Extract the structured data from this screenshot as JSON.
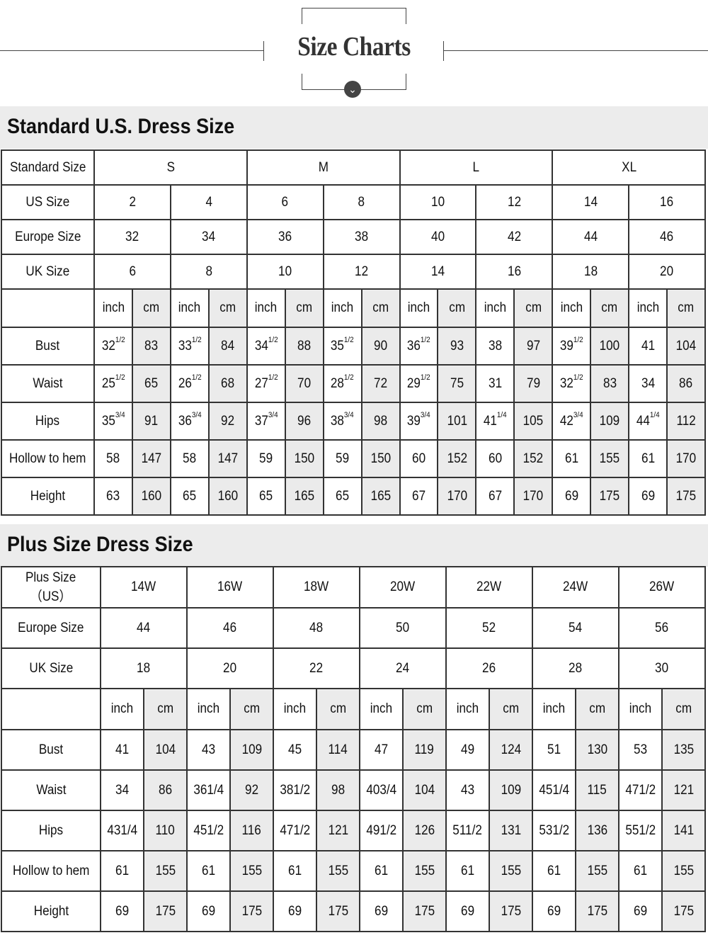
{
  "header": {
    "title": "Size Charts",
    "icon": "chevron-down-circle-icon"
  },
  "standard": {
    "title": "Standard U.S. Dress Size",
    "header_rows": [
      {
        "label": "Standard Size",
        "span": 4,
        "values": [
          "S",
          "M",
          "L",
          "XL"
        ]
      },
      {
        "label": "US Size",
        "span": 2,
        "values": [
          "2",
          "4",
          "6",
          "8",
          "10",
          "12",
          "14",
          "16"
        ]
      },
      {
        "label": "Europe Size",
        "span": 2,
        "values": [
          "32",
          "34",
          "36",
          "38",
          "40",
          "42",
          "44",
          "46"
        ]
      },
      {
        "label": "UK Size",
        "span": 2,
        "values": [
          "6",
          "8",
          "10",
          "12",
          "14",
          "16",
          "18",
          "20"
        ]
      }
    ],
    "units": [
      "inch",
      "cm"
    ],
    "unit_count": 8,
    "measure_rows": [
      {
        "label": "Bust",
        "values": [
          [
            "32",
            "1/2"
          ],
          "83",
          [
            "33",
            "1/2"
          ],
          "84",
          [
            "34",
            "1/2"
          ],
          "88",
          [
            "35",
            "1/2"
          ],
          "90",
          [
            "36",
            "1/2"
          ],
          "93",
          "38",
          "97",
          [
            "39",
            "1/2"
          ],
          "100",
          "41",
          "104"
        ]
      },
      {
        "label": "Waist",
        "values": [
          [
            "25",
            "1/2"
          ],
          "65",
          [
            "26",
            "1/2"
          ],
          "68",
          [
            "27",
            "1/2"
          ],
          "70",
          [
            "28",
            "1/2"
          ],
          "72",
          [
            "29",
            "1/2"
          ],
          "75",
          "31",
          "79",
          [
            "32",
            "1/2"
          ],
          "83",
          "34",
          "86"
        ]
      },
      {
        "label": "Hips",
        "values": [
          [
            "35",
            "3/4"
          ],
          "91",
          [
            "36",
            "3/4"
          ],
          "92",
          [
            "37",
            "3/4"
          ],
          "96",
          [
            "38",
            "3/4"
          ],
          "98",
          [
            "39",
            "3/4"
          ],
          "101",
          [
            "41",
            "1/4"
          ],
          "105",
          [
            "42",
            "3/4"
          ],
          "109",
          [
            "44",
            "1/4"
          ],
          "112"
        ]
      },
      {
        "label": "Hollow to hem",
        "values": [
          "58",
          "147",
          "58",
          "147",
          "59",
          "150",
          "59",
          "150",
          "60",
          "152",
          "60",
          "152",
          "61",
          "155",
          "61",
          "170"
        ]
      },
      {
        "label": "Height",
        "values": [
          "63",
          "160",
          "65",
          "160",
          "65",
          "165",
          "65",
          "165",
          "67",
          "170",
          "67",
          "170",
          "69",
          "175",
          "69",
          "175"
        ]
      }
    ]
  },
  "plus": {
    "title": "Plus Size Dress Size",
    "header_rows": [
      {
        "label": "Plus Size\n（US）",
        "span": 2,
        "values": [
          "14W",
          "16W",
          "18W",
          "20W",
          "22W",
          "24W",
          "26W"
        ]
      },
      {
        "label": "Europe Size",
        "span": 2,
        "values": [
          "44",
          "46",
          "48",
          "50",
          "52",
          "54",
          "56"
        ]
      },
      {
        "label": "UK Size",
        "span": 2,
        "values": [
          "18",
          "20",
          "22",
          "24",
          "26",
          "28",
          "30"
        ]
      }
    ],
    "units": [
      "inch",
      "cm"
    ],
    "unit_count": 7,
    "measure_rows": [
      {
        "label": "Bust",
        "values": [
          "41",
          "104",
          "43",
          "109",
          "45",
          "114",
          "47",
          "119",
          "49",
          "124",
          "51",
          "130",
          "53",
          "135"
        ]
      },
      {
        "label": "Waist",
        "values": [
          "34",
          "86",
          "361/4",
          "92",
          "381/2",
          "98",
          "403/4",
          "104",
          "43",
          "109",
          "451/4",
          "115",
          "471/2",
          "121"
        ]
      },
      {
        "label": "Hips",
        "values": [
          "431/4",
          "110",
          "451/2",
          "116",
          "471/2",
          "121",
          "491/2",
          "126",
          "511/2",
          "131",
          "531/2",
          "136",
          "551/2",
          "141"
        ]
      },
      {
        "label": "Hollow to hem",
        "values": [
          "61",
          "155",
          "61",
          "155",
          "61",
          "155",
          "61",
          "155",
          "61",
          "155",
          "61",
          "155",
          "61",
          "155"
        ]
      },
      {
        "label": "Height",
        "values": [
          "69",
          "175",
          "69",
          "175",
          "69",
          "175",
          "69",
          "175",
          "69",
          "175",
          "69",
          "175",
          "69",
          "175"
        ]
      }
    ]
  }
}
